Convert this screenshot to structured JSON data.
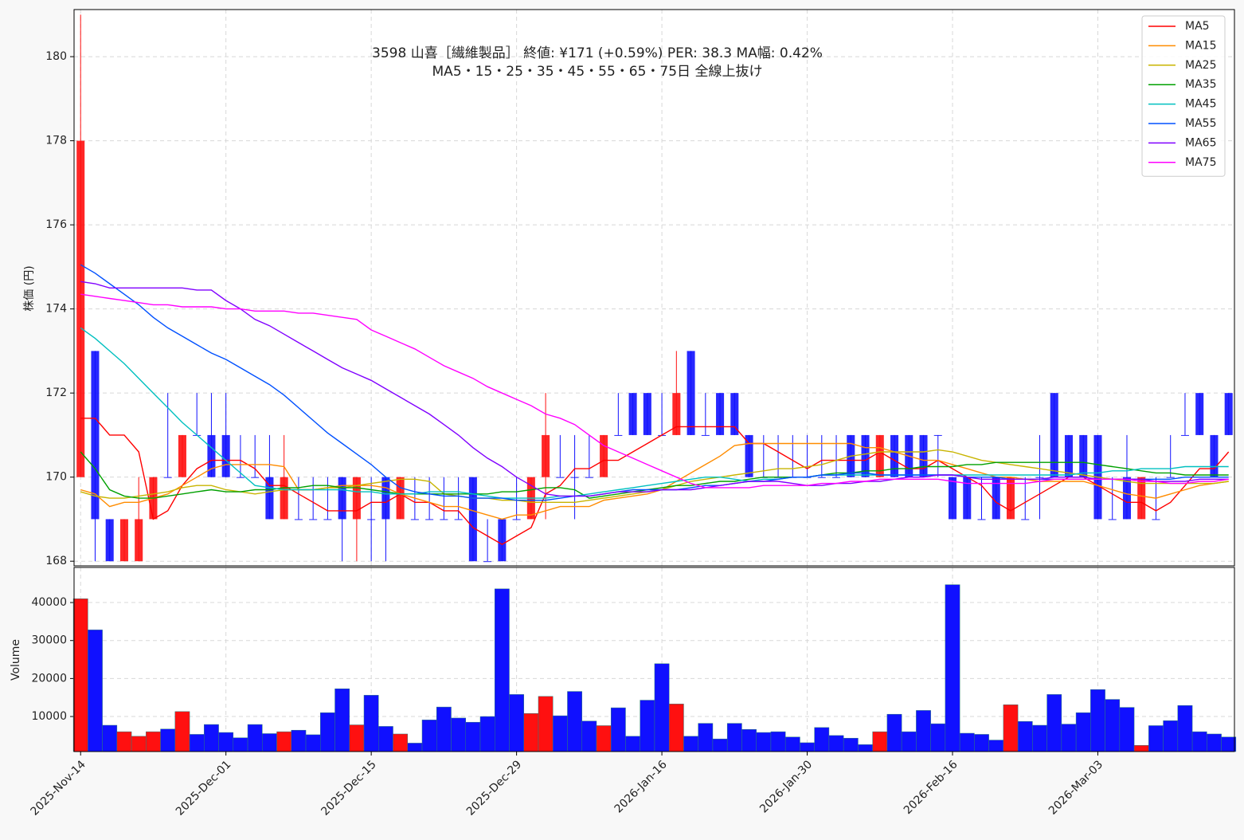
{
  "chart_data": {
    "type": "candlestick",
    "title": "3598  山喜［繊維製品］ 終値: ¥171 (+0.59%)  PER: 38.3  MA幅: 0.42%",
    "subtitle": "MA5・15・25・35・45・55・65・75日 全線上抜け",
    "ylabel": "株価 (円)",
    "categories": [
      "2025-Nov-14",
      null,
      null,
      null,
      null,
      null,
      null,
      null,
      null,
      null,
      "2025-Dec-01",
      null,
      null,
      null,
      null,
      null,
      null,
      null,
      null,
      null,
      "2025-Dec-15",
      null,
      null,
      null,
      null,
      null,
      null,
      null,
      null,
      null,
      "2025-Dec-29",
      null,
      null,
      null,
      null,
      null,
      null,
      null,
      null,
      null,
      "2026-Jan-16",
      null,
      null,
      null,
      null,
      null,
      null,
      null,
      null,
      null,
      "2026-Jan-30",
      null,
      null,
      null,
      null,
      null,
      null,
      null,
      null,
      null,
      "2026-Feb-16",
      null,
      null,
      null,
      null,
      null,
      null,
      null,
      null,
      null,
      "2026-Mar-03",
      null,
      null,
      null,
      null,
      null,
      null,
      null,
      null,
      null
    ],
    "open": [
      170,
      173,
      169,
      168,
      168,
      169,
      170,
      170,
      171,
      171,
      171,
      170,
      170,
      170,
      169,
      169,
      169,
      169,
      170,
      169,
      169,
      170,
      169,
      169,
      169,
      169,
      169,
      170,
      168,
      169,
      169,
      169,
      170,
      170,
      170,
      170,
      170,
      171,
      172,
      172,
      171,
      171,
      173,
      171,
      172,
      172,
      171,
      170,
      170,
      170,
      170,
      170,
      170,
      171,
      171,
      170,
      171,
      171,
      171,
      171,
      170,
      170,
      169,
      170,
      169,
      169,
      170,
      172,
      171,
      171,
      171,
      169,
      170,
      169,
      169,
      170,
      171,
      172,
      171,
      172
    ],
    "high": [
      181,
      173,
      169,
      169,
      170,
      170,
      172,
      171,
      172,
      172,
      172,
      171,
      171,
      171,
      171,
      170,
      170,
      170,
      170,
      170,
      170,
      170,
      170,
      170,
      170,
      170,
      170,
      170,
      169,
      169,
      170,
      170,
      172,
      171,
      171,
      171,
      171,
      172,
      172,
      172,
      172,
      173,
      173,
      172,
      172,
      172,
      171,
      171,
      171,
      171,
      171,
      171,
      171,
      171,
      171,
      171,
      171,
      171,
      171,
      171,
      170,
      170,
      170,
      170,
      170,
      170,
      171,
      172,
      171,
      171,
      171,
      170,
      171,
      170,
      170,
      171,
      172,
      172,
      171,
      172
    ],
    "low": [
      170,
      168,
      168,
      168,
      168,
      169,
      170,
      170,
      171,
      170,
      170,
      170,
      170,
      169,
      169,
      169,
      169,
      169,
      168,
      168,
      168,
      168,
      169,
      169,
      169,
      169,
      169,
      168,
      168,
      168,
      169,
      169,
      169,
      170,
      169,
      170,
      170,
      171,
      171,
      171,
      171,
      171,
      171,
      171,
      171,
      171,
      170,
      170,
      170,
      170,
      170,
      170,
      170,
      170,
      170,
      170,
      170,
      170,
      170,
      170,
      169,
      169,
      169,
      169,
      169,
      169,
      169,
      170,
      170,
      170,
      169,
      169,
      169,
      169,
      169,
      170,
      171,
      171,
      170,
      171
    ],
    "close": [
      178,
      169,
      168,
      169,
      169,
      170,
      170,
      171,
      171,
      170,
      170,
      170,
      170,
      169,
      170,
      169,
      169,
      169,
      169,
      170,
      169,
      169,
      170,
      169,
      169,
      169,
      169,
      168,
      168,
      168,
      169,
      170,
      171,
      170,
      170,
      170,
      171,
      171,
      171,
      171,
      171,
      172,
      171,
      171,
      171,
      171,
      170,
      170,
      170,
      170,
      170,
      170,
      170,
      170,
      170,
      171,
      170,
      170,
      170,
      171,
      169,
      169,
      169,
      169,
      170,
      169,
      170,
      170,
      170,
      170,
      169,
      169,
      169,
      170,
      169,
      170,
      171,
      171,
      170,
      171
    ],
    "up_color": "#ff1010",
    "down_color": "#1010ff",
    "xlim": [
      -0.45,
      79.4
    ],
    "ylim": [
      167.89,
      181.12
    ],
    "yticks": [
      168,
      170,
      172,
      174,
      176,
      178,
      180
    ],
    "grid": true,
    "legend": "upper right",
    "series": [
      {
        "name": "MA5",
        "color": "#ff0000",
        "values": [
          171.4,
          171.4,
          171.0,
          171.0,
          170.6,
          169.0,
          169.2,
          169.8,
          170.2,
          170.4,
          170.4,
          170.4,
          170.2,
          169.8,
          169.8,
          169.6,
          169.4,
          169.2,
          169.2,
          169.2,
          169.4,
          169.4,
          169.6,
          169.4,
          169.4,
          169.2,
          169.2,
          168.8,
          168.6,
          168.4,
          168.6,
          168.8,
          169.6,
          169.8,
          170.2,
          170.2,
          170.4,
          170.4,
          170.6,
          170.8,
          171.0,
          171.2,
          171.2,
          171.2,
          171.2,
          171.2,
          170.8,
          170.8,
          170.6,
          170.4,
          170.2,
          170.4,
          170.4,
          170.4,
          170.4,
          170.6,
          170.4,
          170.2,
          170.2,
          170.4,
          170.2,
          170.0,
          169.8,
          169.4,
          169.2,
          169.4,
          169.6,
          169.8,
          170.0,
          170.0,
          169.8,
          169.6,
          169.4,
          169.4,
          169.2,
          169.4,
          169.8,
          170.2,
          170.2,
          170.6
        ]
      },
      {
        "name": "MA15",
        "color": "#ff8c00",
        "values": [
          169.7,
          169.6,
          169.3,
          169.4,
          169.4,
          169.5,
          169.6,
          169.8,
          170.0,
          170.2,
          170.3,
          170.3,
          170.3,
          170.3,
          170.25,
          169.7,
          169.7,
          169.75,
          169.8,
          169.8,
          169.8,
          169.75,
          169.6,
          169.5,
          169.4,
          169.3,
          169.3,
          169.2,
          169.1,
          169.0,
          169.1,
          169.1,
          169.2,
          169.3,
          169.3,
          169.3,
          169.45,
          169.5,
          169.55,
          169.6,
          169.7,
          169.9,
          170.1,
          170.3,
          170.5,
          170.75,
          170.8,
          170.8,
          170.8,
          170.8,
          170.8,
          170.8,
          170.8,
          170.8,
          170.7,
          170.7,
          170.6,
          170.5,
          170.4,
          170.4,
          170.3,
          170.2,
          170.1,
          170.0,
          170.0,
          169.95,
          169.9,
          169.9,
          169.9,
          169.9,
          169.8,
          169.7,
          169.6,
          169.55,
          169.5,
          169.6,
          169.7,
          169.8,
          169.85,
          169.9
        ]
      },
      {
        "name": "MA25",
        "color": "#c8b400",
        "values": [
          169.65,
          169.55,
          169.5,
          169.5,
          169.55,
          169.6,
          169.65,
          169.75,
          169.8,
          169.8,
          169.7,
          169.65,
          169.6,
          169.65,
          169.7,
          169.7,
          169.7,
          169.75,
          169.75,
          169.8,
          169.85,
          169.9,
          169.95,
          169.95,
          169.9,
          169.6,
          169.55,
          169.5,
          169.5,
          169.45,
          169.45,
          169.4,
          169.4,
          169.4,
          169.4,
          169.45,
          169.5,
          169.55,
          169.6,
          169.65,
          169.7,
          169.8,
          169.9,
          169.95,
          170.0,
          170.05,
          170.1,
          170.15,
          170.2,
          170.2,
          170.25,
          170.3,
          170.4,
          170.5,
          170.55,
          170.6,
          170.6,
          170.6,
          170.6,
          170.65,
          170.6,
          170.5,
          170.4,
          170.35,
          170.3,
          170.25,
          170.2,
          170.15,
          170.1,
          170.05,
          170.0,
          169.95,
          169.9,
          169.85,
          169.85,
          169.85,
          169.85,
          169.85,
          169.85,
          169.9
        ]
      },
      {
        "name": "MA35",
        "color": "#00a000",
        "values": [
          170.6,
          170.2,
          169.7,
          169.55,
          169.5,
          169.5,
          169.55,
          169.6,
          169.65,
          169.7,
          169.65,
          169.65,
          169.7,
          169.7,
          169.75,
          169.75,
          169.8,
          169.8,
          169.75,
          169.75,
          169.7,
          169.65,
          169.6,
          169.6,
          169.6,
          169.6,
          169.6,
          169.6,
          169.6,
          169.65,
          169.65,
          169.7,
          169.75,
          169.75,
          169.7,
          169.5,
          169.55,
          169.6,
          169.65,
          169.7,
          169.75,
          169.8,
          169.8,
          169.85,
          169.9,
          169.9,
          169.95,
          170.0,
          170.0,
          170.0,
          170.0,
          170.05,
          170.1,
          170.1,
          170.15,
          170.15,
          170.2,
          170.2,
          170.25,
          170.25,
          170.25,
          170.3,
          170.3,
          170.35,
          170.35,
          170.35,
          170.35,
          170.35,
          170.35,
          170.35,
          170.3,
          170.25,
          170.2,
          170.15,
          170.1,
          170.1,
          170.05,
          170.05,
          170.05,
          170.05
        ]
      },
      {
        "name": "MA45",
        "color": "#00c0c0",
        "values": [
          173.55,
          173.3,
          173.0,
          172.7,
          172.35,
          172.0,
          171.65,
          171.3,
          171.0,
          170.7,
          170.4,
          170.1,
          169.8,
          169.75,
          169.7,
          169.7,
          169.7,
          169.7,
          169.7,
          169.65,
          169.65,
          169.6,
          169.6,
          169.6,
          169.65,
          169.65,
          169.65,
          169.6,
          169.55,
          169.5,
          169.5,
          169.5,
          169.5,
          169.55,
          169.55,
          169.6,
          169.65,
          169.7,
          169.75,
          169.8,
          169.85,
          169.9,
          169.95,
          170.0,
          170.0,
          169.95,
          169.9,
          169.95,
          169.95,
          170.0,
          170.0,
          170.05,
          170.05,
          170.05,
          170.05,
          170.05,
          170.05,
          170.05,
          170.05,
          170.05,
          170.05,
          170.05,
          170.05,
          170.05,
          170.05,
          170.05,
          170.05,
          170.05,
          170.05,
          170.1,
          170.1,
          170.15,
          170.15,
          170.2,
          170.2,
          170.2,
          170.25,
          170.25,
          170.25,
          170.25
        ]
      },
      {
        "name": "MA55",
        "color": "#0050ff",
        "values": [
          175.05,
          174.85,
          174.6,
          174.35,
          174.1,
          173.8,
          173.55,
          173.35,
          173.15,
          172.95,
          172.8,
          172.6,
          172.4,
          172.2,
          171.95,
          171.65,
          171.35,
          171.05,
          170.8,
          170.55,
          170.3,
          170.0,
          169.75,
          169.65,
          169.6,
          169.55,
          169.55,
          169.5,
          169.5,
          169.5,
          169.45,
          169.45,
          169.45,
          169.5,
          169.55,
          169.55,
          169.6,
          169.65,
          169.7,
          169.7,
          169.7,
          169.7,
          169.75,
          169.8,
          169.8,
          169.85,
          169.9,
          169.9,
          169.95,
          170.0,
          170.0,
          170.05,
          170.05,
          170.1,
          170.1,
          170.05,
          170.05,
          170.05,
          170.05,
          170.05,
          170.05,
          170.0,
          170.0,
          170.0,
          169.95,
          169.95,
          169.95,
          169.95,
          169.95,
          169.95,
          169.95,
          169.95,
          169.95,
          169.95,
          169.95,
          169.95,
          170.0,
          170.0,
          170.0,
          170.0
        ]
      },
      {
        "name": "MA65",
        "color": "#8000ff",
        "values": [
          174.65,
          174.6,
          174.5,
          174.5,
          174.5,
          174.5,
          174.5,
          174.5,
          174.45,
          174.45,
          174.2,
          174.0,
          173.75,
          173.6,
          173.4,
          173.2,
          173.0,
          172.8,
          172.6,
          172.45,
          172.3,
          172.1,
          171.9,
          171.7,
          171.5,
          171.25,
          171.0,
          170.7,
          170.45,
          170.25,
          170.0,
          169.8,
          169.6,
          169.55,
          169.55,
          169.55,
          169.6,
          169.65,
          169.65,
          169.65,
          169.7,
          169.7,
          169.7,
          169.75,
          169.8,
          169.85,
          169.9,
          169.9,
          169.9,
          169.85,
          169.8,
          169.8,
          169.85,
          169.85,
          169.9,
          169.9,
          169.95,
          170.0,
          170.0,
          170.05,
          170.05,
          170.0,
          169.95,
          169.95,
          169.95,
          169.95,
          169.95,
          170.0,
          170.0,
          170.0,
          169.95,
          169.95,
          169.95,
          169.95,
          169.9,
          169.9,
          169.9,
          169.95,
          169.95,
          169.95
        ]
      },
      {
        "name": "MA75",
        "color": "#ff00ff",
        "values": [
          174.35,
          174.3,
          174.25,
          174.2,
          174.15,
          174.1,
          174.1,
          174.05,
          174.05,
          174.05,
          174.0,
          174.0,
          173.95,
          173.95,
          173.95,
          173.9,
          173.9,
          173.85,
          173.8,
          173.75,
          173.5,
          173.35,
          173.2,
          173.05,
          172.85,
          172.65,
          172.5,
          172.35,
          172.15,
          172.0,
          171.85,
          171.7,
          171.5,
          171.4,
          171.25,
          171.0,
          170.75,
          170.6,
          170.45,
          170.3,
          170.15,
          170.0,
          169.85,
          169.75,
          169.75,
          169.75,
          169.75,
          169.8,
          169.8,
          169.8,
          169.8,
          169.85,
          169.85,
          169.9,
          169.9,
          169.95,
          169.95,
          169.95,
          169.95,
          169.95,
          169.9,
          169.85,
          169.85,
          169.85,
          169.85,
          169.85,
          169.9,
          169.95,
          169.95,
          169.95,
          169.95,
          169.95,
          169.95,
          169.9,
          169.9,
          169.85,
          169.85,
          169.9,
          169.9,
          169.95
        ]
      }
    ],
    "volume": {
      "ylabel": "Volume",
      "values": [
        41000,
        32800,
        7700,
        6000,
        4800,
        6000,
        6700,
        11300,
        5300,
        7900,
        5800,
        4400,
        7900,
        5500,
        6000,
        6400,
        5200,
        11000,
        17300,
        7800,
        15600,
        7400,
        5400,
        3000,
        9100,
        12500,
        9600,
        8500,
        10000,
        43600,
        15800,
        10800,
        15300,
        10200,
        16600,
        8800,
        7600,
        12300,
        4800,
        14300,
        23900,
        13300,
        4800,
        8200,
        4100,
        8200,
        6600,
        5800,
        6000,
        4600,
        3100,
        7100,
        5000,
        4300,
        2600,
        6000,
        10600,
        6000,
        11600,
        8100,
        44700,
        5600,
        5300,
        3800,
        13100,
        8700,
        7700,
        15800,
        8000,
        11000,
        17100,
        14500,
        12400,
        2400,
        7600,
        8900,
        12900,
        6000,
        5400,
        4600
      ],
      "ylim": [
        780,
        49240
      ],
      "yticks": [
        10000,
        20000,
        30000,
        40000
      ]
    }
  }
}
